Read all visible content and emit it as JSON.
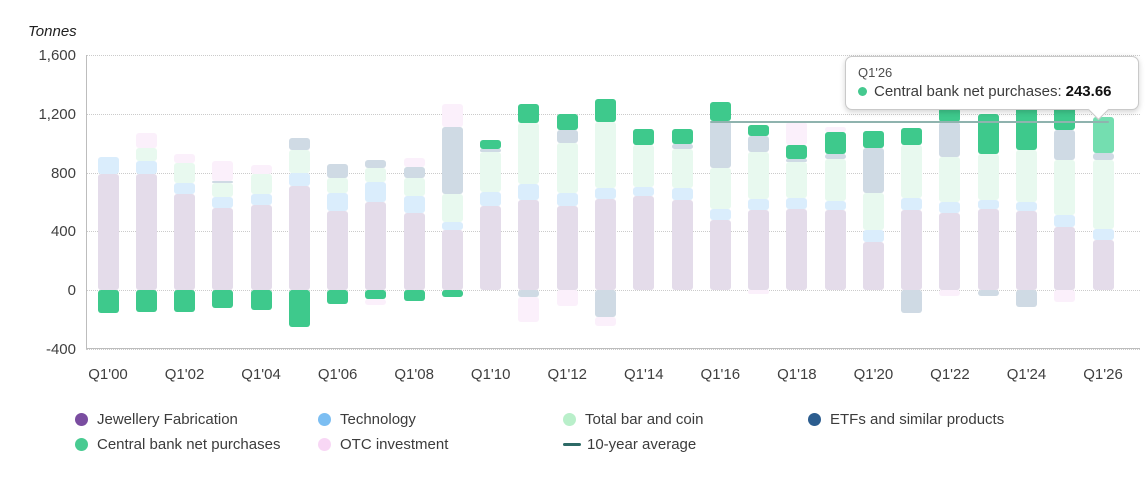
{
  "chart": {
    "y_axis_title": "Tonnes",
    "y_ticks": [
      {
        "label": "1,600",
        "value": 1600
      },
      {
        "label": "1,200",
        "value": 1200
      },
      {
        "label": "800",
        "value": 800
      },
      {
        "label": "400",
        "value": 400
      },
      {
        "label": "0",
        "value": 0
      },
      {
        "label": "-400",
        "value": -400
      }
    ]
  },
  "chart_data": {
    "type": "bar",
    "stacked": true,
    "title": "",
    "xlabel": "",
    "ylabel": "Tonnes",
    "ylim": [
      -400,
      1600
    ],
    "grid": true,
    "x_tick_labels": [
      "Q1'00",
      "Q1'02",
      "Q1'04",
      "Q1'06",
      "Q1'08",
      "Q1'10",
      "Q1'12",
      "Q1'14",
      "Q1'16",
      "Q1'18",
      "Q1'20",
      "Q1'22",
      "Q1'24",
      "Q1'26"
    ],
    "categories": [
      "Q1'00",
      "Q1'01",
      "Q1'02",
      "Q1'03",
      "Q1'04",
      "Q1'05",
      "Q1'06",
      "Q1'07",
      "Q1'08",
      "Q1'09",
      "Q1'10",
      "Q1'11",
      "Q1'12",
      "Q1'13",
      "Q1'14",
      "Q1'15",
      "Q1'16",
      "Q1'17",
      "Q1'18",
      "Q1'19",
      "Q1'20",
      "Q1'21",
      "Q1'22",
      "Q1'23",
      "Q1'24",
      "Q1'25",
      "Q1'26"
    ],
    "series": [
      {
        "key": "jewellery",
        "name": "Jewellery Fabrication",
        "legend_color": "#7a4da0",
        "bar_color": "#e4dcea",
        "values": [
          790,
          790,
          655,
          560,
          580,
          710,
          540,
          600,
          525,
          410,
          570,
          615,
          570,
          620,
          640,
          615,
          480,
          545,
          554,
          545,
          330,
          545,
          525,
          550,
          540,
          430,
          340
        ]
      },
      {
        "key": "technology",
        "name": "Technology",
        "legend_color": "#7cbef2",
        "bar_color": "#daedfc",
        "values": [
          115,
          88,
          75,
          76,
          75,
          88,
          120,
          135,
          115,
          55,
          100,
          108,
          88,
          74,
          61,
          81,
          74,
          75,
          75,
          61,
          80,
          84,
          74,
          61,
          60,
          84,
          75
        ]
      },
      {
        "key": "bar-and-coin",
        "name": "Total bar and coin",
        "legend_color": "#b9efca",
        "bar_color": "#e8f9ef",
        "values": [
          0,
          88,
          136,
          94,
          135,
          155,
          100,
          93,
          122,
          190,
          270,
          413,
          344,
          453,
          284,
          264,
          278,
          318,
          243,
          285,
          250,
          358,
          304,
          318,
          352,
          371,
          470
        ]
      },
      {
        "key": "etf",
        "name": "ETFs and similar products",
        "legend_color": "#2c5d8f",
        "bar_color": "#cfdae4",
        "values": [
          0,
          0,
          0,
          14,
          0,
          82,
          95,
          55,
          74,
          453,
          20,
          -45,
          89,
          -183,
          0,
          34,
          317,
          114,
          21,
          33,
          304,
          -160,
          244,
          -40,
          -113,
          204,
          48
        ]
      },
      {
        "key": "central-bank",
        "name": "Central bank net purchases",
        "legend_color": "#49cb92",
        "bar_color": "#3ec98c",
        "hover_color": "#74deb0",
        "values": [
          -155,
          -150,
          -150,
          -122,
          -135,
          -255,
          -95,
          -60,
          -75,
          -45,
          60,
          128,
          108,
          156,
          115,
          101,
          135,
          75,
          94,
          149,
          121,
          115,
          94,
          270,
          311,
          168,
          243.66
        ]
      },
      {
        "key": "otc",
        "name": "OTC investment",
        "legend_color": "#f8d7f5",
        "bar_color": "#fbf0fb",
        "values": [
          0,
          101,
          60,
          135,
          61,
          0,
          0,
          -45,
          61,
          162,
          0,
          -170,
          -110,
          -60,
          0,
          0,
          0,
          -30,
          156,
          34,
          0,
          0,
          -40,
          0,
          0,
          -80,
          0
        ]
      }
    ],
    "average_line": {
      "name": "10-year average",
      "value": 1145,
      "start_category": "Q1'16",
      "end_category": "Q1'26",
      "color": "#8fb3ae"
    },
    "highlight": {
      "category": "Q1'26",
      "series": "Central bank net purchases",
      "value": 243.66
    }
  },
  "tooltip": {
    "title": "Q1'26",
    "series_label": "Central bank net purchases:",
    "value": "243.66",
    "dot_color": "#45c98f"
  },
  "legend": {
    "rows": [
      [
        {
          "label": "Jewellery Fabrication",
          "color": "#7a4da0",
          "type": "dot"
        },
        {
          "label": "Technology",
          "color": "#7cbef2",
          "type": "dot"
        },
        {
          "label": "Total bar and coin",
          "color": "#b9efca",
          "type": "dot"
        },
        {
          "label": "ETFs and similar products",
          "color": "#2c5d8f",
          "type": "dot"
        }
      ],
      [
        {
          "label": "Central bank net purchases",
          "color": "#49cb92",
          "type": "dot"
        },
        {
          "label": "OTC investment",
          "color": "#f8d7f5",
          "type": "dot"
        },
        {
          "label": "10-year average",
          "color": "#2d6a66",
          "type": "line"
        }
      ]
    ]
  }
}
